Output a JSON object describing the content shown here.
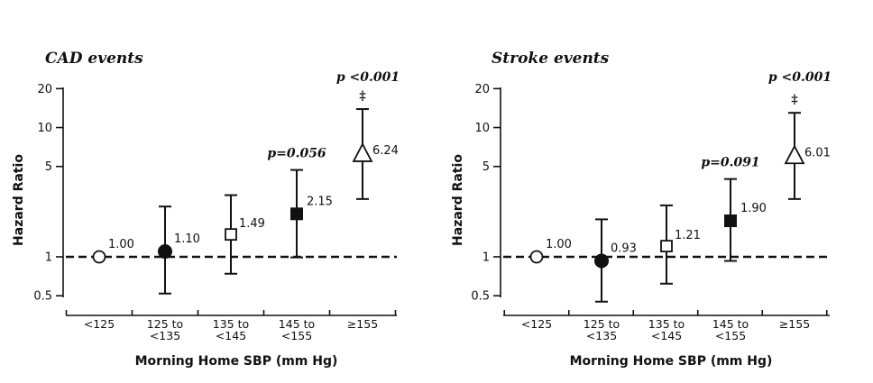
{
  "chart_data": [
    {
      "type": "scatter",
      "title": "CAD events",
      "xlabel": "Morning Home SBP (mm Hg)",
      "ylabel": "Hazard Ratio",
      "yscale": "log",
      "ylim": [
        0.4,
        22
      ],
      "yticks": [
        "0.5",
        "1",
        "5",
        "10",
        "20"
      ],
      "reference_line": 1,
      "categories": [
        [
          "<125"
        ],
        [
          "125 to",
          "<135"
        ],
        [
          "135 to",
          "<145"
        ],
        [
          "145 to",
          "<155"
        ],
        [
          "≥155"
        ]
      ],
      "points": [
        {
          "value": 1.0,
          "label": "1.00",
          "lower": 1.0,
          "upper": 1.0,
          "marker": "open-circle"
        },
        {
          "value": 1.1,
          "label": "1.10",
          "lower": 0.52,
          "upper": 2.45,
          "marker": "filled-circle"
        },
        {
          "value": 1.49,
          "label": "1.49",
          "lower": 0.74,
          "upper": 3.0,
          "marker": "open-square"
        },
        {
          "value": 2.15,
          "label": "2.15",
          "lower": 0.99,
          "upper": 4.7,
          "marker": "filled-square"
        },
        {
          "value": 6.24,
          "label": "6.24",
          "lower": 2.8,
          "upper": 13.9,
          "marker": "open-triangle"
        }
      ],
      "annotations": [
        {
          "category": 3,
          "text": "p=0.056"
        },
        {
          "category": 4,
          "text": "p <0.001"
        },
        {
          "category": 4,
          "text": "‡"
        }
      ]
    },
    {
      "type": "scatter",
      "title": "Stroke events",
      "xlabel": "Morning Home SBP (mm Hg)",
      "ylabel": "Hazard Ratio",
      "yscale": "log",
      "ylim": [
        0.4,
        22
      ],
      "yticks": [
        "0.5",
        "1",
        "5",
        "10",
        "20"
      ],
      "reference_line": 1,
      "categories": [
        [
          "<125"
        ],
        [
          "125 to",
          "<135"
        ],
        [
          "135 to",
          "<145"
        ],
        [
          "145 to",
          "<155"
        ],
        [
          "≥155"
        ]
      ],
      "points": [
        {
          "value": 1.0,
          "label": "1.00",
          "lower": 1.0,
          "upper": 1.0,
          "marker": "open-circle"
        },
        {
          "value": 0.93,
          "label": "0.93",
          "lower": 0.45,
          "upper": 1.95,
          "marker": "filled-circle"
        },
        {
          "value": 1.21,
          "label": "1.21",
          "lower": 0.62,
          "upper": 2.5,
          "marker": "open-square"
        },
        {
          "value": 1.9,
          "label": "1.90",
          "lower": 0.93,
          "upper": 4.0,
          "marker": "filled-square"
        },
        {
          "value": 6.01,
          "label": "6.01",
          "lower": 2.8,
          "upper": 13.0,
          "marker": "open-triangle"
        }
      ],
      "annotations": [
        {
          "category": 3,
          "text": "p=0.091"
        },
        {
          "category": 4,
          "text": "p <0.001"
        },
        {
          "category": 4,
          "text": "‡"
        }
      ]
    }
  ]
}
